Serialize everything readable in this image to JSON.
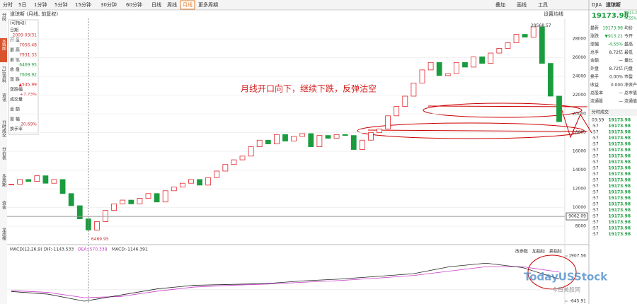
{
  "toolbar": {
    "tabs": [
      "分时",
      "5日",
      "1分钟",
      "5分钟",
      "15分钟",
      "30分钟",
      "60分钟",
      "日线",
      "周线",
      "月线",
      "更多周期"
    ],
    "right": [
      "叠加",
      "画线",
      "工具"
    ]
  },
  "sidebar": [
    "分时",
    "K线图",
    "F10资料",
    "资讯",
    "分时成交",
    "分价表",
    "多周期",
    "资金",
    "龙虎榜"
  ],
  "header": {
    "title": "道琼斯 (月线, 前复权)",
    "ma_setting": "设置均线"
  },
  "info_panel": {
    "drag": "(可拖动)",
    "rows": [
      [
        "日期",
        "2009 03/31"
      ],
      [
        "开 盘",
        "7056.48"
      ],
      [
        "最 高",
        "7931.33"
      ],
      [
        "最 低",
        "6469.95"
      ],
      [
        "收 盘",
        "7608.92"
      ],
      [
        "涨 跌",
        "▲545.99"
      ],
      [
        "涨跌幅",
        "+7.73%"
      ],
      [
        "成交量",
        ""
      ],
      [
        "金 额",
        ""
      ],
      [
        "振 幅",
        "20.69%"
      ],
      [
        "换手率",
        ""
      ]
    ]
  },
  "chart_data": {
    "type": "candlestick",
    "annotation": "月线开口向下，继续下跌，反弹沽空",
    "close": [
      12500,
      13000,
      12800,
      13400,
      12600,
      13000,
      11500,
      10200,
      8800,
      7608.92,
      8500,
      9700,
      10400,
      10800,
      10400,
      11000,
      11500,
      10600,
      11800,
      12200,
      12600,
      13000,
      12400,
      13200,
      13900,
      14600,
      15100,
      15500,
      16500,
      17200,
      16800,
      17800,
      17100,
      17600,
      17900,
      16500,
      17700,
      17400,
      17800,
      17700,
      16200,
      17200,
      18000,
      18400,
      19800,
      20800,
      21900,
      23300,
      24700,
      25500,
      24100,
      24300,
      25500,
      25000,
      26100,
      25400,
      26500,
      27000,
      27600,
      28500,
      28200,
      29300,
      25400,
      21900,
      19173.98
    ],
    "up_color": "#e0262b",
    "down_color": "#1a9c3e",
    "ylim": [
      6200,
      29900
    ],
    "yticks": [
      8000,
      10000,
      12000,
      14000,
      16000,
      18000,
      20000,
      22000,
      24000,
      26000,
      28000
    ],
    "crosshair_price": 9062.09,
    "max": 29568.57,
    "min": 6469.95,
    "macd": {
      "title": "MACD(12,26,9)",
      "dif_label": "DIF:-1143.533",
      "dea_label": "DEA:-570.338",
      "macd_label": "MACD:-1146.391",
      "buttons": [
        "改参数",
        "加指标",
        "换指标"
      ],
      "dif": [
        -100,
        -250,
        -645,
        -300,
        50,
        250,
        300,
        350,
        500,
        600,
        750,
        900,
        1300,
        1500,
        1250,
        600
      ],
      "dea": [
        -50,
        -150,
        -450,
        -380,
        -80,
        150,
        250,
        320,
        420,
        520,
        650,
        800,
        1050,
        1300,
        1300,
        1000
      ],
      "dif_color": "#222",
      "dea_color": "#c83cc8",
      "ylim": [
        -645.91,
        1907.56
      ],
      "yticks": [
        -645.91,
        1907.56
      ]
    }
  },
  "quote_panel": {
    "code": "DJIA",
    "name": "道琼斯",
    "price": "19173.98",
    "change": "▼913.21",
    "pct": "-4.55%",
    "rows": [
      [
        "最新",
        "19173.98",
        "均价"
      ],
      [
        "涨跌",
        "▼913.21",
        "今开"
      ],
      [
        "涨幅",
        "-4.55%",
        "最高"
      ],
      [
        "总手",
        "8.72亿",
        "最低"
      ],
      [
        "金额",
        "—",
        "量比"
      ],
      [
        "外盘",
        "8.72亿",
        "内盘"
      ],
      [
        "换手",
        "0.00%",
        "市盈"
      ],
      [
        "收益",
        "0.000",
        "净资产"
      ],
      [
        "总股本",
        "—",
        "总市值"
      ],
      [
        "流通股",
        "—",
        "流通值"
      ]
    ]
  },
  "trades": {
    "title": "分时成交",
    "times": [
      "03:59",
      ":57",
      ":57",
      ":57",
      ":57",
      ":57",
      ":57",
      ":57",
      ":57",
      ":57",
      ":57",
      ":57",
      ":57",
      ":57",
      ":57",
      ":57",
      ":57",
      ":57",
      ":57",
      ":57"
    ],
    "prices": [
      "19173.98",
      "19173.98",
      "19173.98",
      "19173.98",
      "19173.98",
      "19173.98",
      "19173.98",
      "19173.98",
      "19173.98",
      "19173.98",
      "19173.98",
      "19173.98",
      "19173.98",
      "19173.98",
      "19173.98",
      "19173.98",
      "19173.98",
      "19173.98",
      "19173.98",
      "19173.98"
    ]
  },
  "watermark": {
    "brand": "TodayUSStock",
    "cn": "今日美股网"
  }
}
